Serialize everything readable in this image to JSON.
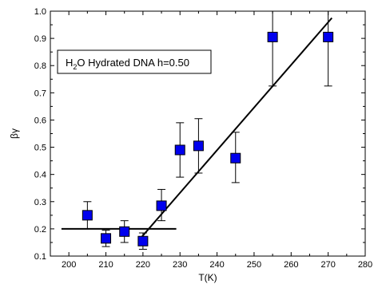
{
  "chart_data": {
    "type": "scatter",
    "xlabel": "T(K)",
    "ylabel": "βγ",
    "xlim": [
      195,
      280
    ],
    "ylim": [
      0.1,
      1.0
    ],
    "x_ticks": [
      200,
      210,
      220,
      230,
      240,
      250,
      260,
      270,
      280
    ],
    "y_ticks": [
      0.1,
      0.2,
      0.3,
      0.4,
      0.5,
      0.6,
      0.7,
      0.8,
      0.9,
      1.0
    ],
    "x_tick_labels": [
      "200",
      "210",
      "220",
      "230",
      "240",
      "250",
      "260",
      "270",
      "280"
    ],
    "y_tick_labels": [
      "0.1",
      "0.2",
      "0.3",
      "0.4",
      "0.5",
      "0.6",
      "0.7",
      "0.8",
      "0.9",
      "1.0"
    ],
    "grid": false,
    "legend": {
      "placement": "top-left",
      "text_main": "H",
      "text_sub": "2",
      "text_rest": "O Hydrated DNA h=0.50"
    },
    "series": [
      {
        "marker": "square",
        "color": "#0000ee",
        "points": [
          {
            "x": 205,
            "y": 0.25,
            "err_low": 0.2,
            "err_high": 0.3
          },
          {
            "x": 210,
            "y": 0.165,
            "err_low": 0.135,
            "err_high": 0.195
          },
          {
            "x": 215,
            "y": 0.19,
            "err_low": 0.15,
            "err_high": 0.23
          },
          {
            "x": 220,
            "y": 0.155,
            "err_low": 0.125,
            "err_high": 0.185
          },
          {
            "x": 225,
            "y": 0.285,
            "err_low": 0.23,
            "err_high": 0.345
          },
          {
            "x": 230,
            "y": 0.49,
            "err_low": 0.39,
            "err_high": 0.59
          },
          {
            "x": 235,
            "y": 0.505,
            "err_low": 0.405,
            "err_high": 0.605
          },
          {
            "x": 245,
            "y": 0.46,
            "err_low": 0.37,
            "err_high": 0.555
          },
          {
            "x": 255,
            "y": 0.905,
            "err_low": 0.725,
            "err_high": 1.0
          },
          {
            "x": 270,
            "y": 0.905,
            "err_low": 0.725,
            "err_high": 1.0
          }
        ]
      }
    ],
    "fit_lines": [
      {
        "x": [
          198,
          229
        ],
        "y": [
          0.2,
          0.2
        ]
      },
      {
        "x": [
          219,
          271
        ],
        "y": [
          0.16,
          0.975
        ]
      }
    ]
  }
}
